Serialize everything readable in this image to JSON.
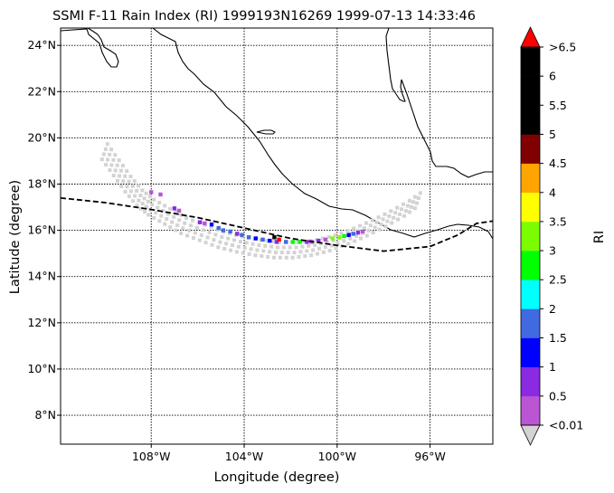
{
  "title": "SSMI F-11 Rain Index (RI) 1999193N16269 1999-07-13 14:33:46",
  "xlabel": "Longitude (degree)",
  "ylabel": "Latitude (degree)",
  "colorbar_label": "RI",
  "x_tick_labels": [
    "108°W",
    "104°W",
    "100°W",
    "96°W"
  ],
  "y_tick_labels": [
    "24°N",
    "22°N",
    "20°N",
    "18°N",
    "16°N",
    "14°N",
    "12°N",
    "10°N",
    "8°N"
  ],
  "colorbar_tick_labels": [
    "<0.01",
    "0.5",
    "1",
    "1.5",
    "2",
    "2.5",
    "3",
    "3.5",
    "4",
    "4.5",
    "5",
    "5.5",
    "6",
    ">6.5"
  ],
  "colorbar_colors": [
    "#ba55d3",
    "#8a2be2",
    "#0000ff",
    "#4169e1",
    "#00ffff",
    "#00ff00",
    "#7cfc00",
    "#ffff00",
    "#ffa500",
    "#800000",
    "#000000",
    "#000000",
    "#000000"
  ],
  "colorbar_under_color": "#d3d3d3",
  "colorbar_over_color": "#ff0000",
  "chart_data": {
    "type": "scatter",
    "projection": "plate carree",
    "xlim": [
      -111.9,
      -93.3
    ],
    "ylim": [
      6.75,
      24.75
    ],
    "x_ticks": [
      -108,
      -104,
      -100,
      -96
    ],
    "y_ticks": [
      24,
      22,
      20,
      18,
      16,
      14,
      12,
      10,
      8
    ],
    "grid": true,
    "swath_path": [
      [
        -110.0,
        19.4
      ],
      [
        -109.5,
        18.7
      ],
      [
        -109.0,
        18.0
      ],
      [
        -108.5,
        17.4
      ],
      [
        -108.0,
        17.0
      ],
      [
        -107.3,
        16.6
      ],
      [
        -106.6,
        16.2
      ],
      [
        -105.8,
        15.9
      ],
      [
        -105.0,
        15.6
      ],
      [
        -104.2,
        15.4
      ],
      [
        -103.4,
        15.25
      ],
      [
        -102.6,
        15.15
      ],
      [
        -101.8,
        15.15
      ],
      [
        -101.0,
        15.25
      ],
      [
        -100.2,
        15.45
      ],
      [
        -99.4,
        15.75
      ],
      [
        -98.6,
        16.1
      ],
      [
        -97.8,
        16.5
      ],
      [
        -97.0,
        16.95
      ],
      [
        -96.3,
        17.45
      ]
    ],
    "swath_rows": 4,
    "colored_points": [
      {
        "lon": -108.0,
        "lat": 17.65,
        "ri": 0.3
      },
      {
        "lon": -107.6,
        "lat": 17.55,
        "ri": 0.3
      },
      {
        "lon": -107.0,
        "lat": 16.95,
        "ri": 0.7
      },
      {
        "lon": -106.8,
        "lat": 16.85,
        "ri": 0.3
      },
      {
        "lon": -105.9,
        "lat": 16.35,
        "ri": 0.7
      },
      {
        "lon": -105.7,
        "lat": 16.3,
        "ri": 0.3
      },
      {
        "lon": -105.4,
        "lat": 16.25,
        "ri": 1.2
      },
      {
        "lon": -105.1,
        "lat": 16.1,
        "ri": 1.7
      },
      {
        "lon": -104.9,
        "lat": 16.0,
        "ri": 1.7
      },
      {
        "lon": -104.6,
        "lat": 15.95,
        "ri": 1.7
      },
      {
        "lon": -104.3,
        "lat": 15.85,
        "ri": 0.7
      },
      {
        "lon": -104.1,
        "lat": 15.8,
        "ri": 1.7
      },
      {
        "lon": -103.8,
        "lat": 15.7,
        "ri": 1.7
      },
      {
        "lon": -103.5,
        "lat": 15.65,
        "ri": 1.2
      },
      {
        "lon": -103.2,
        "lat": 15.6,
        "ri": 1.7
      },
      {
        "lon": -102.9,
        "lat": 15.55,
        "ri": 1.2
      },
      {
        "lon": -102.6,
        "lat": 15.5,
        "ri": 0.7
      },
      {
        "lon": -102.7,
        "lat": 15.7,
        "ri": 5.2
      },
      {
        "lon": -102.5,
        "lat": 15.6,
        "ri": 7.0
      },
      {
        "lon": -102.2,
        "lat": 15.5,
        "ri": 1.7
      },
      {
        "lon": -101.9,
        "lat": 15.5,
        "ri": 2.7
      },
      {
        "lon": -101.6,
        "lat": 15.5,
        "ri": 2.7
      },
      {
        "lon": -101.3,
        "lat": 15.5,
        "ri": 0.7
      },
      {
        "lon": -101.1,
        "lat": 15.5,
        "ri": 0.3
      },
      {
        "lon": -100.8,
        "lat": 15.55,
        "ri": 0.7
      },
      {
        "lon": -100.5,
        "lat": 15.6,
        "ri": 0.3
      },
      {
        "lon": -100.2,
        "lat": 15.65,
        "ri": 3.2
      },
      {
        "lon": -99.9,
        "lat": 15.7,
        "ri": 3.2
      },
      {
        "lon": -99.7,
        "lat": 15.75,
        "ri": 2.7
      },
      {
        "lon": -99.5,
        "lat": 15.8,
        "ri": 1.2
      },
      {
        "lon": -99.3,
        "lat": 15.85,
        "ri": 1.7
      },
      {
        "lon": -99.1,
        "lat": 15.9,
        "ri": 0.7
      },
      {
        "lon": -98.9,
        "lat": 15.95,
        "ri": 0.3
      }
    ],
    "track": [
      [
        -111.9,
        17.4
      ],
      [
        -110.0,
        17.2
      ],
      [
        -108.0,
        16.9
      ],
      [
        -106.0,
        16.55
      ],
      [
        -104.0,
        16.1
      ],
      [
        -102.0,
        15.65
      ],
      [
        -100.0,
        15.35
      ],
      [
        -98.0,
        15.1
      ],
      [
        -96.0,
        15.3
      ],
      [
        -94.8,
        15.8
      ],
      [
        -94.0,
        16.3
      ],
      [
        -93.3,
        16.4
      ]
    ]
  }
}
